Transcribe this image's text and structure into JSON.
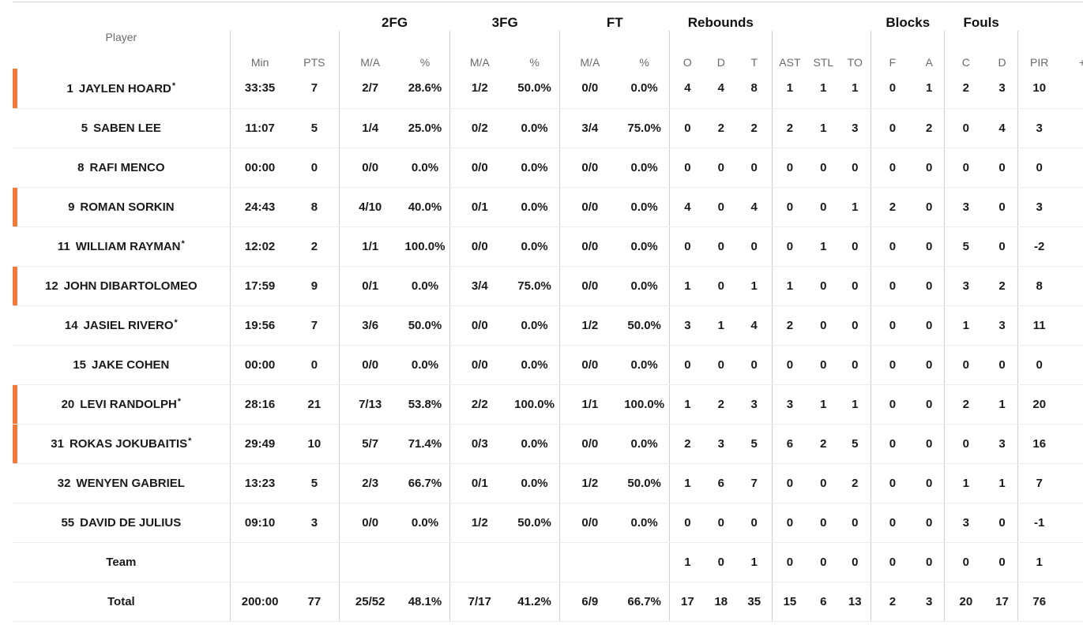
{
  "table": {
    "group_headers": {
      "fg2": "2FG",
      "fg3": "3FG",
      "ft": "FT",
      "rebounds": "Rebounds",
      "blocks": "Blocks",
      "fouls": "Fouls"
    },
    "columns": {
      "player": "Player",
      "min": "Min",
      "pts": "PTS",
      "fg2_ma": "M/A",
      "fg2_pct": "%",
      "fg3_ma": "M/A",
      "fg3_pct": "%",
      "ft_ma": "M/A",
      "ft_pct": "%",
      "reb_o": "O",
      "reb_d": "D",
      "reb_t": "T",
      "ast": "AST",
      "stl": "STL",
      "to": "TO",
      "blk_f": "F",
      "blk_a": "A",
      "foul_c": "C",
      "foul_d": "D",
      "pir": "PIR",
      "pm": "+/-"
    },
    "starter_marker": "*",
    "accent_color": "#f07a3a",
    "rows": [
      {
        "num": "1",
        "first": "JAYLEN",
        "last": "HOARD",
        "starred": true,
        "accent": true,
        "min": "33:35",
        "pts": "7",
        "fg2_ma": "2/7",
        "fg2_pct": "28.6%",
        "fg3_ma": "1/2",
        "fg3_pct": "50.0%",
        "ft_ma": "0/0",
        "ft_pct": "0.0%",
        "reb_o": "4",
        "reb_d": "4",
        "reb_t": "8",
        "ast": "1",
        "stl": "1",
        "to": "1",
        "blk_f": "0",
        "blk_a": "1",
        "foul_c": "2",
        "foul_d": "3",
        "pir": "10",
        "pm": ""
      },
      {
        "num": "5",
        "first": "SABEN",
        "last": "LEE",
        "starred": false,
        "accent": false,
        "min": "11:07",
        "pts": "5",
        "fg2_ma": "1/4",
        "fg2_pct": "25.0%",
        "fg3_ma": "0/2",
        "fg3_pct": "0.0%",
        "ft_ma": "3/4",
        "ft_pct": "75.0%",
        "reb_o": "0",
        "reb_d": "2",
        "reb_t": "2",
        "ast": "2",
        "stl": "1",
        "to": "3",
        "blk_f": "0",
        "blk_a": "2",
        "foul_c": "0",
        "foul_d": "4",
        "pir": "3",
        "pm": ""
      },
      {
        "num": "8",
        "first": "RAFI",
        "last": "MENCO",
        "starred": false,
        "accent": false,
        "min": "00:00",
        "pts": "0",
        "fg2_ma": "0/0",
        "fg2_pct": "0.0%",
        "fg3_ma": "0/0",
        "fg3_pct": "0.0%",
        "ft_ma": "0/0",
        "ft_pct": "0.0%",
        "reb_o": "0",
        "reb_d": "0",
        "reb_t": "0",
        "ast": "0",
        "stl": "0",
        "to": "0",
        "blk_f": "0",
        "blk_a": "0",
        "foul_c": "0",
        "foul_d": "0",
        "pir": "0",
        "pm": ""
      },
      {
        "num": "9",
        "first": "ROMAN",
        "last": "SORKIN",
        "starred": false,
        "accent": true,
        "min": "24:43",
        "pts": "8",
        "fg2_ma": "4/10",
        "fg2_pct": "40.0%",
        "fg3_ma": "0/1",
        "fg3_pct": "0.0%",
        "ft_ma": "0/0",
        "ft_pct": "0.0%",
        "reb_o": "4",
        "reb_d": "0",
        "reb_t": "4",
        "ast": "0",
        "stl": "0",
        "to": "1",
        "blk_f": "2",
        "blk_a": "0",
        "foul_c": "3",
        "foul_d": "0",
        "pir": "3",
        "pm": ""
      },
      {
        "num": "11",
        "first": "WILLIAM",
        "last": "RAYMAN",
        "starred": true,
        "accent": false,
        "min": "12:02",
        "pts": "2",
        "fg2_ma": "1/1",
        "fg2_pct": "100.0%",
        "fg3_ma": "0/0",
        "fg3_pct": "0.0%",
        "ft_ma": "0/0",
        "ft_pct": "0.0%",
        "reb_o": "0",
        "reb_d": "0",
        "reb_t": "0",
        "ast": "0",
        "stl": "1",
        "to": "0",
        "blk_f": "0",
        "blk_a": "0",
        "foul_c": "5",
        "foul_d": "0",
        "pir": "-2",
        "pm": ""
      },
      {
        "num": "12",
        "first": "JOHN",
        "last": "DIBARTOLOMEO",
        "starred": false,
        "accent": true,
        "min": "17:59",
        "pts": "9",
        "fg2_ma": "0/1",
        "fg2_pct": "0.0%",
        "fg3_ma": "3/4",
        "fg3_pct": "75.0%",
        "ft_ma": "0/0",
        "ft_pct": "0.0%",
        "reb_o": "1",
        "reb_d": "0",
        "reb_t": "1",
        "ast": "1",
        "stl": "0",
        "to": "0",
        "blk_f": "0",
        "blk_a": "0",
        "foul_c": "3",
        "foul_d": "2",
        "pir": "8",
        "pm": ""
      },
      {
        "num": "14",
        "first": "JASIEL",
        "last": "RIVERO",
        "starred": true,
        "accent": false,
        "min": "19:56",
        "pts": "7",
        "fg2_ma": "3/6",
        "fg2_pct": "50.0%",
        "fg3_ma": "0/0",
        "fg3_pct": "0.0%",
        "ft_ma": "1/2",
        "ft_pct": "50.0%",
        "reb_o": "3",
        "reb_d": "1",
        "reb_t": "4",
        "ast": "2",
        "stl": "0",
        "to": "0",
        "blk_f": "0",
        "blk_a": "0",
        "foul_c": "1",
        "foul_d": "3",
        "pir": "11",
        "pm": ""
      },
      {
        "num": "15",
        "first": "JAKE",
        "last": "COHEN",
        "starred": false,
        "accent": false,
        "min": "00:00",
        "pts": "0",
        "fg2_ma": "0/0",
        "fg2_pct": "0.0%",
        "fg3_ma": "0/0",
        "fg3_pct": "0.0%",
        "ft_ma": "0/0",
        "ft_pct": "0.0%",
        "reb_o": "0",
        "reb_d": "0",
        "reb_t": "0",
        "ast": "0",
        "stl": "0",
        "to": "0",
        "blk_f": "0",
        "blk_a": "0",
        "foul_c": "0",
        "foul_d": "0",
        "pir": "0",
        "pm": ""
      },
      {
        "num": "20",
        "first": "LEVI",
        "last": "RANDOLPH",
        "starred": true,
        "accent": true,
        "min": "28:16",
        "pts": "21",
        "fg2_ma": "7/13",
        "fg2_pct": "53.8%",
        "fg3_ma": "2/2",
        "fg3_pct": "100.0%",
        "ft_ma": "1/1",
        "ft_pct": "100.0%",
        "reb_o": "1",
        "reb_d": "2",
        "reb_t": "3",
        "ast": "3",
        "stl": "1",
        "to": "1",
        "blk_f": "0",
        "blk_a": "0",
        "foul_c": "2",
        "foul_d": "1",
        "pir": "20",
        "pm": ""
      },
      {
        "num": "31",
        "first": "ROKAS",
        "last": "JOKUBAITIS",
        "starred": true,
        "accent": true,
        "min": "29:49",
        "pts": "10",
        "fg2_ma": "5/7",
        "fg2_pct": "71.4%",
        "fg3_ma": "0/3",
        "fg3_pct": "0.0%",
        "ft_ma": "0/0",
        "ft_pct": "0.0%",
        "reb_o": "2",
        "reb_d": "3",
        "reb_t": "5",
        "ast": "6",
        "stl": "2",
        "to": "5",
        "blk_f": "0",
        "blk_a": "0",
        "foul_c": "0",
        "foul_d": "3",
        "pir": "16",
        "pm": ""
      },
      {
        "num": "32",
        "first": "WENYEN",
        "last": "GABRIEL",
        "starred": false,
        "accent": false,
        "min": "13:23",
        "pts": "5",
        "fg2_ma": "2/3",
        "fg2_pct": "66.7%",
        "fg3_ma": "0/1",
        "fg3_pct": "0.0%",
        "ft_ma": "1/2",
        "ft_pct": "50.0%",
        "reb_o": "1",
        "reb_d": "6",
        "reb_t": "7",
        "ast": "0",
        "stl": "0",
        "to": "2",
        "blk_f": "0",
        "blk_a": "0",
        "foul_c": "1",
        "foul_d": "1",
        "pir": "7",
        "pm": ""
      },
      {
        "num": "55",
        "first": "DAVID",
        "last": "DE JULIUS",
        "starred": false,
        "accent": false,
        "min": "09:10",
        "pts": "3",
        "fg2_ma": "0/0",
        "fg2_pct": "0.0%",
        "fg3_ma": "1/2",
        "fg3_pct": "50.0%",
        "ft_ma": "0/0",
        "ft_pct": "0.0%",
        "reb_o": "0",
        "reb_d": "0",
        "reb_t": "0",
        "ast": "0",
        "stl": "0",
        "to": "0",
        "blk_f": "0",
        "blk_a": "0",
        "foul_c": "3",
        "foul_d": "0",
        "pir": "-1",
        "pm": ""
      }
    ],
    "team_row": {
      "label": "Team",
      "min": "",
      "pts": "",
      "fg2_ma": "",
      "fg2_pct": "",
      "fg3_ma": "",
      "fg3_pct": "",
      "ft_ma": "",
      "ft_pct": "",
      "reb_o": "1",
      "reb_d": "0",
      "reb_t": "1",
      "ast": "0",
      "stl": "0",
      "to": "0",
      "blk_f": "0",
      "blk_a": "0",
      "foul_c": "0",
      "foul_d": "0",
      "pir": "1",
      "pm": ""
    },
    "total_row": {
      "label": "Total",
      "min": "200:00",
      "pts": "77",
      "fg2_ma": "25/52",
      "fg2_pct": "48.1%",
      "fg3_ma": "7/17",
      "fg3_pct": "41.2%",
      "ft_ma": "6/9",
      "ft_pct": "66.7%",
      "reb_o": "17",
      "reb_d": "18",
      "reb_t": "35",
      "ast": "15",
      "stl": "6",
      "to": "13",
      "blk_f": "2",
      "blk_a": "3",
      "foul_c": "20",
      "foul_d": "17",
      "pir": "76",
      "pm": ""
    }
  }
}
